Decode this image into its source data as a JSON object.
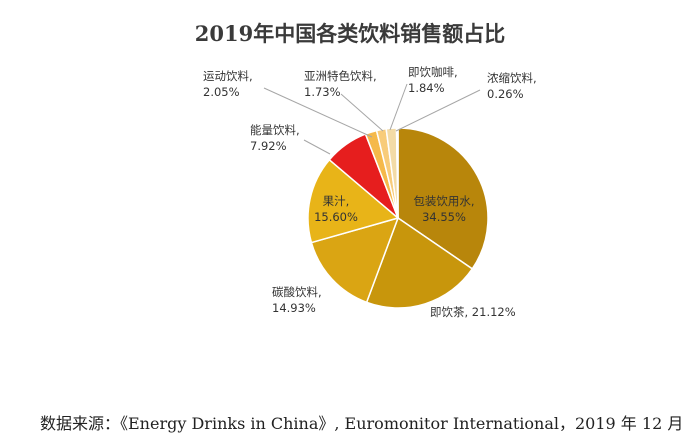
{
  "chart_data": {
    "type": "pie",
    "title": "2019年中国各类饮料销售额占比",
    "slices": [
      {
        "name": "包装饮用水",
        "value": 34.55,
        "value_label": "34.55%",
        "color": "#b8860b"
      },
      {
        "name": "即饮茶",
        "value": 21.12,
        "value_label": "21.12%",
        "color": "#c8960c"
      },
      {
        "name": "碳酸饮料",
        "value": 14.93,
        "value_label": "14.93%",
        "color": "#daa513"
      },
      {
        "name": "果汁",
        "value": 15.6,
        "value_label": "15.60%",
        "color": "#e8b418"
      },
      {
        "name": "能量饮料",
        "value": 7.92,
        "value_label": "7.92%",
        "color": "#e61e1e"
      },
      {
        "name": "运动饮料",
        "value": 2.05,
        "value_label": "2.05%",
        "color": "#f5b94a"
      },
      {
        "name": "亚洲特色饮料",
        "value": 1.73,
        "value_label": "1.73%",
        "color": "#f8cc7a"
      },
      {
        "name": "即饮咖啡",
        "value": 1.84,
        "value_label": "1.84%",
        "color": "#f3dba6"
      },
      {
        "name": "浓缩饮料",
        "value": 0.26,
        "value_label": "0.26%",
        "color": "#eeeeee"
      }
    ],
    "label_lines": [
      "包装饮用水,\n34.55%",
      "即饮茶, 21.12%",
      "碳酸饮料,\n14.93%",
      "果汁,\n15.60%",
      "能量饮料,\n7.92%",
      "运动饮料,\n2.05%",
      "亚洲特色饮料,\n1.73%",
      "即饮咖啡,\n1.84%",
      "浓缩饮料,\n0.26%"
    ]
  },
  "source_note": "数据来源：《Energy Drinks in China》, Euromonitor International，2019 年 12 月"
}
